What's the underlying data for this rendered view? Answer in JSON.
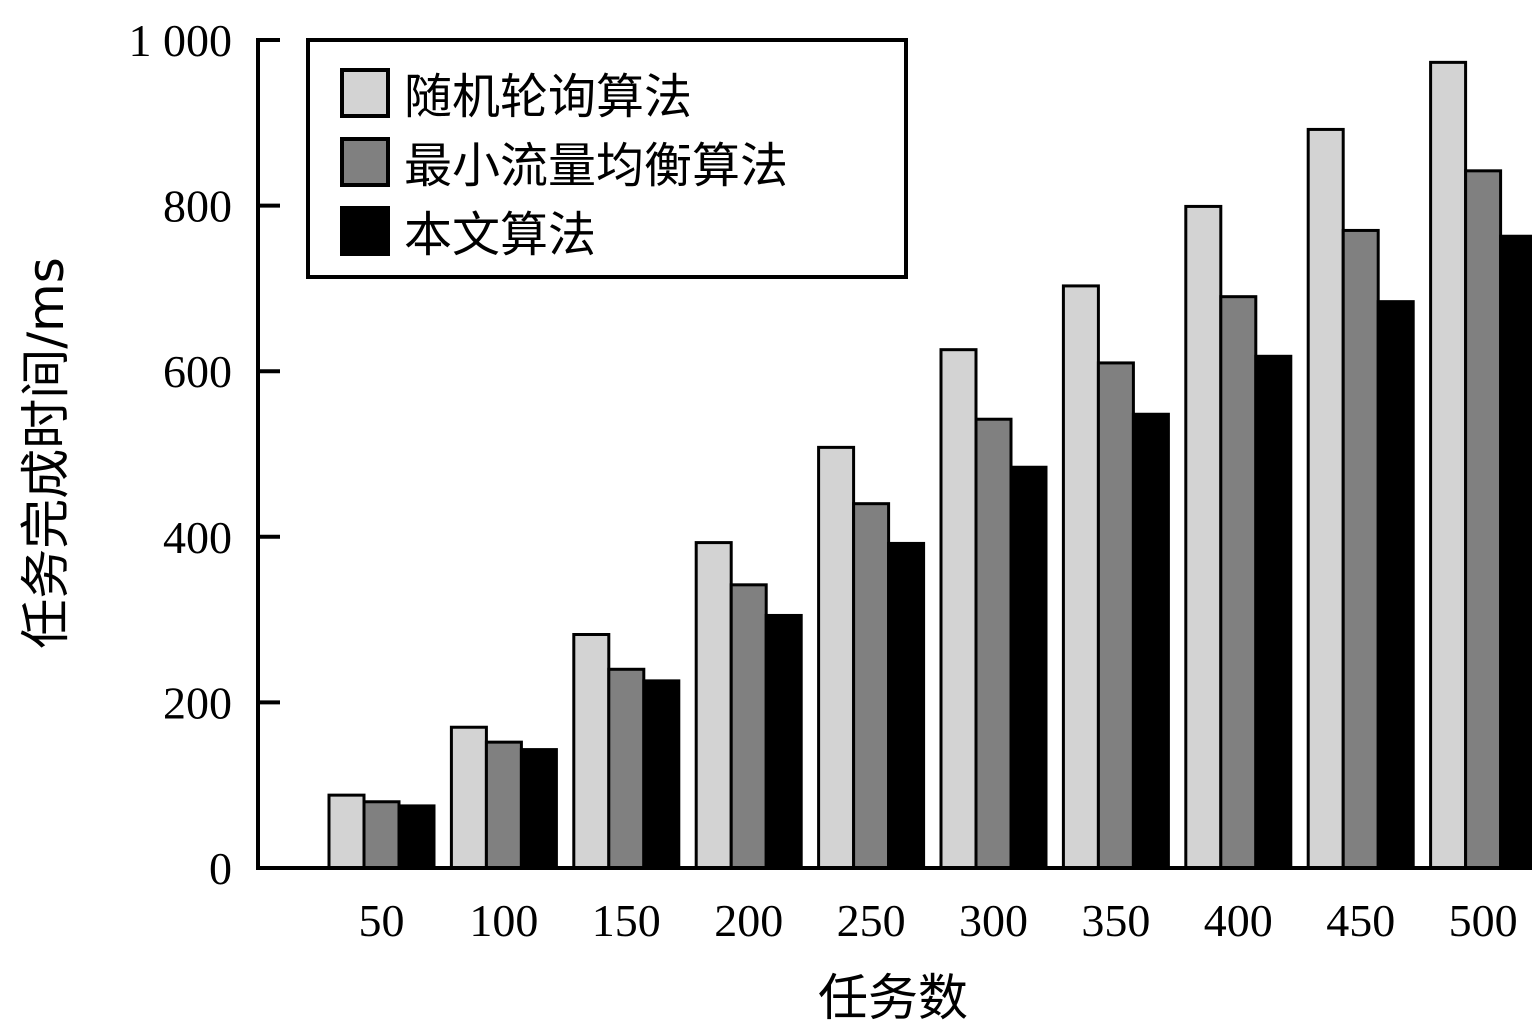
{
  "chart_data": {
    "type": "bar",
    "xlabel": "任务数",
    "ylabel": "任务完成时间/ms",
    "ylim": [
      0,
      1000
    ],
    "yticks": [
      0,
      200,
      400,
      600,
      800,
      1000
    ],
    "ytick_labels": [
      "0",
      "200",
      "400",
      "600",
      "800",
      "1 000"
    ],
    "categories": [
      "50",
      "100",
      "150",
      "200",
      "250",
      "300",
      "350",
      "400",
      "450",
      "500"
    ],
    "series": [
      {
        "name": "随机轮询算法",
        "color": "#d3d3d3",
        "values": [
          88,
          170,
          282,
          393,
          508,
          626,
          703,
          799,
          892,
          973
        ]
      },
      {
        "name": "最小流量均衡算法",
        "color": "#808080",
        "values": [
          80,
          152,
          240,
          342,
          440,
          542,
          610,
          690,
          770,
          842
        ]
      },
      {
        "name": "本文算法",
        "color": "#000000",
        "values": [
          75,
          143,
          226,
          305,
          392,
          484,
          548,
          618,
          684,
          763
        ]
      }
    ],
    "legend_position": "top-left",
    "grid": false
  }
}
